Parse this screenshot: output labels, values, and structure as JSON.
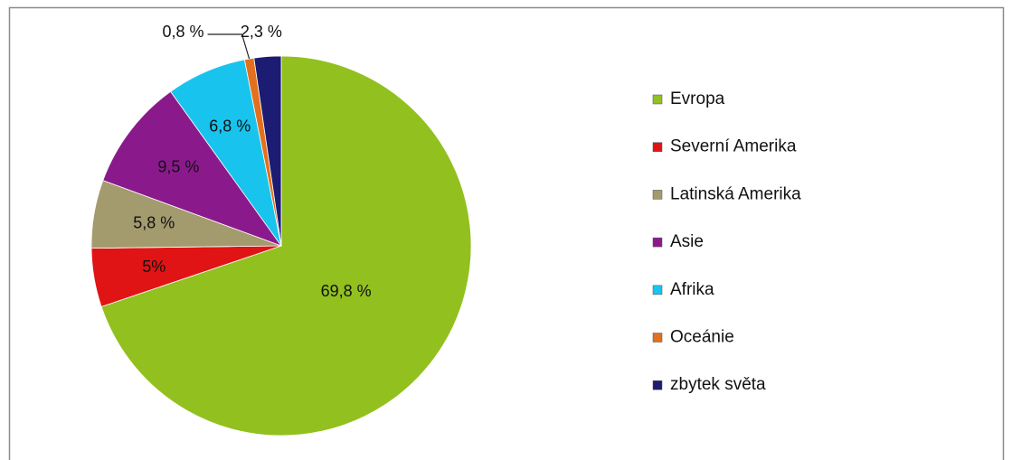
{
  "chart_data": {
    "type": "pie",
    "categories": [
      "Evropa",
      "Severní Amerika",
      "Latinská Amerika",
      "Asie",
      "Afrika",
      "Oceánie",
      "zbytek světa"
    ],
    "values": [
      69.8,
      5,
      5.8,
      9.5,
      6.8,
      0.8,
      2.3
    ],
    "value_labels": [
      "69,8 %",
      "5%",
      "5,8 %",
      "9,5 %",
      "6,8 %",
      "0,8 %",
      "2,3 %"
    ],
    "colors": [
      "#92c01f",
      "#e01414",
      "#a39a6e",
      "#8a1a8c",
      "#18c4ee",
      "#e2701e",
      "#1c1c72"
    ],
    "legend": "right"
  }
}
